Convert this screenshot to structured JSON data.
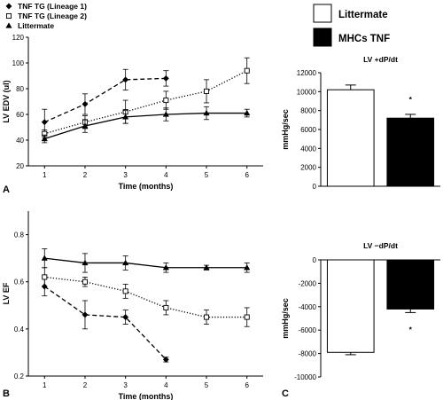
{
  "panel_labels": {
    "a": "A",
    "b": "B",
    "c": "C"
  },
  "legend_top_left": [
    {
      "label": "TNF TG (Lineage 1)",
      "marker": "diamond-filled",
      "style": "dashed"
    },
    {
      "label": "TNF TG (Lineage 2)",
      "marker": "square-open",
      "style": "dotted"
    },
    {
      "label": "Littermate",
      "marker": "triangle-filled",
      "style": "solid"
    }
  ],
  "legend_right": [
    {
      "label": "Littermate",
      "fill": "#ffffff"
    },
    {
      "label": "MHCs TNF",
      "fill": "#000000"
    }
  ],
  "colors": {
    "ink": "#000000",
    "paper": "#ffffff"
  },
  "chart_data": [
    {
      "id": "A",
      "type": "line",
      "title": "",
      "xlabel": "Time (months)",
      "ylabel": "LV EDV (ul)",
      "xlim": [
        0.6,
        6.4
      ],
      "ylim": [
        20,
        120
      ],
      "xticks": [
        "1",
        "2",
        "3",
        "4",
        "5",
        "6"
      ],
      "yticks": [
        "20",
        "40",
        "60",
        "80",
        "100",
        "120"
      ],
      "series": [
        {
          "name": "TNF TG (Lineage 1)",
          "marker": "diamond-filled",
          "style": "dashed",
          "x": [
            1,
            2,
            3,
            4
          ],
          "y": [
            54,
            68,
            87,
            88
          ],
          "err": [
            10,
            8,
            8,
            6
          ]
        },
        {
          "name": "TNF TG (Lineage 2)",
          "marker": "square-open",
          "style": "dotted",
          "x": [
            1,
            2,
            3,
            4,
            5,
            6
          ],
          "y": [
            45,
            54,
            62,
            71,
            78,
            94
          ],
          "err": [
            3,
            5,
            9,
            7,
            9,
            10
          ]
        },
        {
          "name": "Littermate",
          "marker": "triangle-filled",
          "style": "solid",
          "x": [
            1,
            2,
            3,
            4,
            5,
            6
          ],
          "y": [
            41,
            51,
            58,
            60,
            61,
            61
          ],
          "err": [
            3,
            5,
            5,
            5,
            5,
            3
          ]
        }
      ]
    },
    {
      "id": "B",
      "type": "line",
      "title": "",
      "xlabel": "Time (months)",
      "ylabel": "LV EF",
      "xlim": [
        0.6,
        6.4
      ],
      "ylim": [
        0.2,
        0.9
      ],
      "xticks": [
        "1",
        "2",
        "3",
        "4",
        "5",
        "6"
      ],
      "yticks": [
        "0.2",
        "0.4",
        "0.6",
        "0.8"
      ],
      "series": [
        {
          "name": "TNF TG (Lineage 1)",
          "marker": "diamond-filled",
          "style": "dashed",
          "x": [
            1,
            2,
            3,
            4
          ],
          "y": [
            0.58,
            0.46,
            0.45,
            0.27
          ],
          "err": [
            0.04,
            0.06,
            0.03,
            0.01
          ]
        },
        {
          "name": "TNF TG (Lineage 2)",
          "marker": "square-open",
          "style": "dotted",
          "x": [
            1,
            2,
            3,
            4,
            5,
            6
          ],
          "y": [
            0.62,
            0.6,
            0.56,
            0.49,
            0.45,
            0.45
          ],
          "err": [
            0.04,
            0.02,
            0.03,
            0.03,
            0.03,
            0.04
          ]
        },
        {
          "name": "Littermate",
          "marker": "triangle-filled",
          "style": "solid",
          "x": [
            1,
            2,
            3,
            4,
            5,
            6
          ],
          "y": [
            0.7,
            0.68,
            0.68,
            0.66,
            0.66,
            0.66
          ],
          "err": [
            0.04,
            0.04,
            0.03,
            0.02,
            0.01,
            0.02
          ]
        }
      ]
    },
    {
      "id": "C-top",
      "type": "bar",
      "title": "LV +dP/dt",
      "xlabel": "",
      "ylabel": "mmHg/sec",
      "ylim": [
        0,
        12000
      ],
      "yticks": [
        "0",
        "2000",
        "4000",
        "6000",
        "8000",
        "10000",
        "12000"
      ],
      "categories": [
        "Littermate",
        "MHCs TNF"
      ],
      "values": [
        10200,
        7200
      ],
      "err": [
        500,
        400
      ],
      "fills": [
        "#ffffff",
        "#000000"
      ],
      "annotation": "*"
    },
    {
      "id": "C-bottom",
      "type": "bar",
      "title": "LV −dP/dt",
      "xlabel": "",
      "ylabel": "mmHg/sec",
      "ylim": [
        -10000,
        0
      ],
      "yticks": [
        "0",
        "-2000",
        "-4000",
        "-6000",
        "-8000",
        "-10000"
      ],
      "categories": [
        "Littermate",
        "MHCs TNF"
      ],
      "values": [
        -7900,
        -4200
      ],
      "err": [
        200,
        300
      ],
      "fills": [
        "#ffffff",
        "#000000"
      ],
      "annotation": "*"
    }
  ]
}
